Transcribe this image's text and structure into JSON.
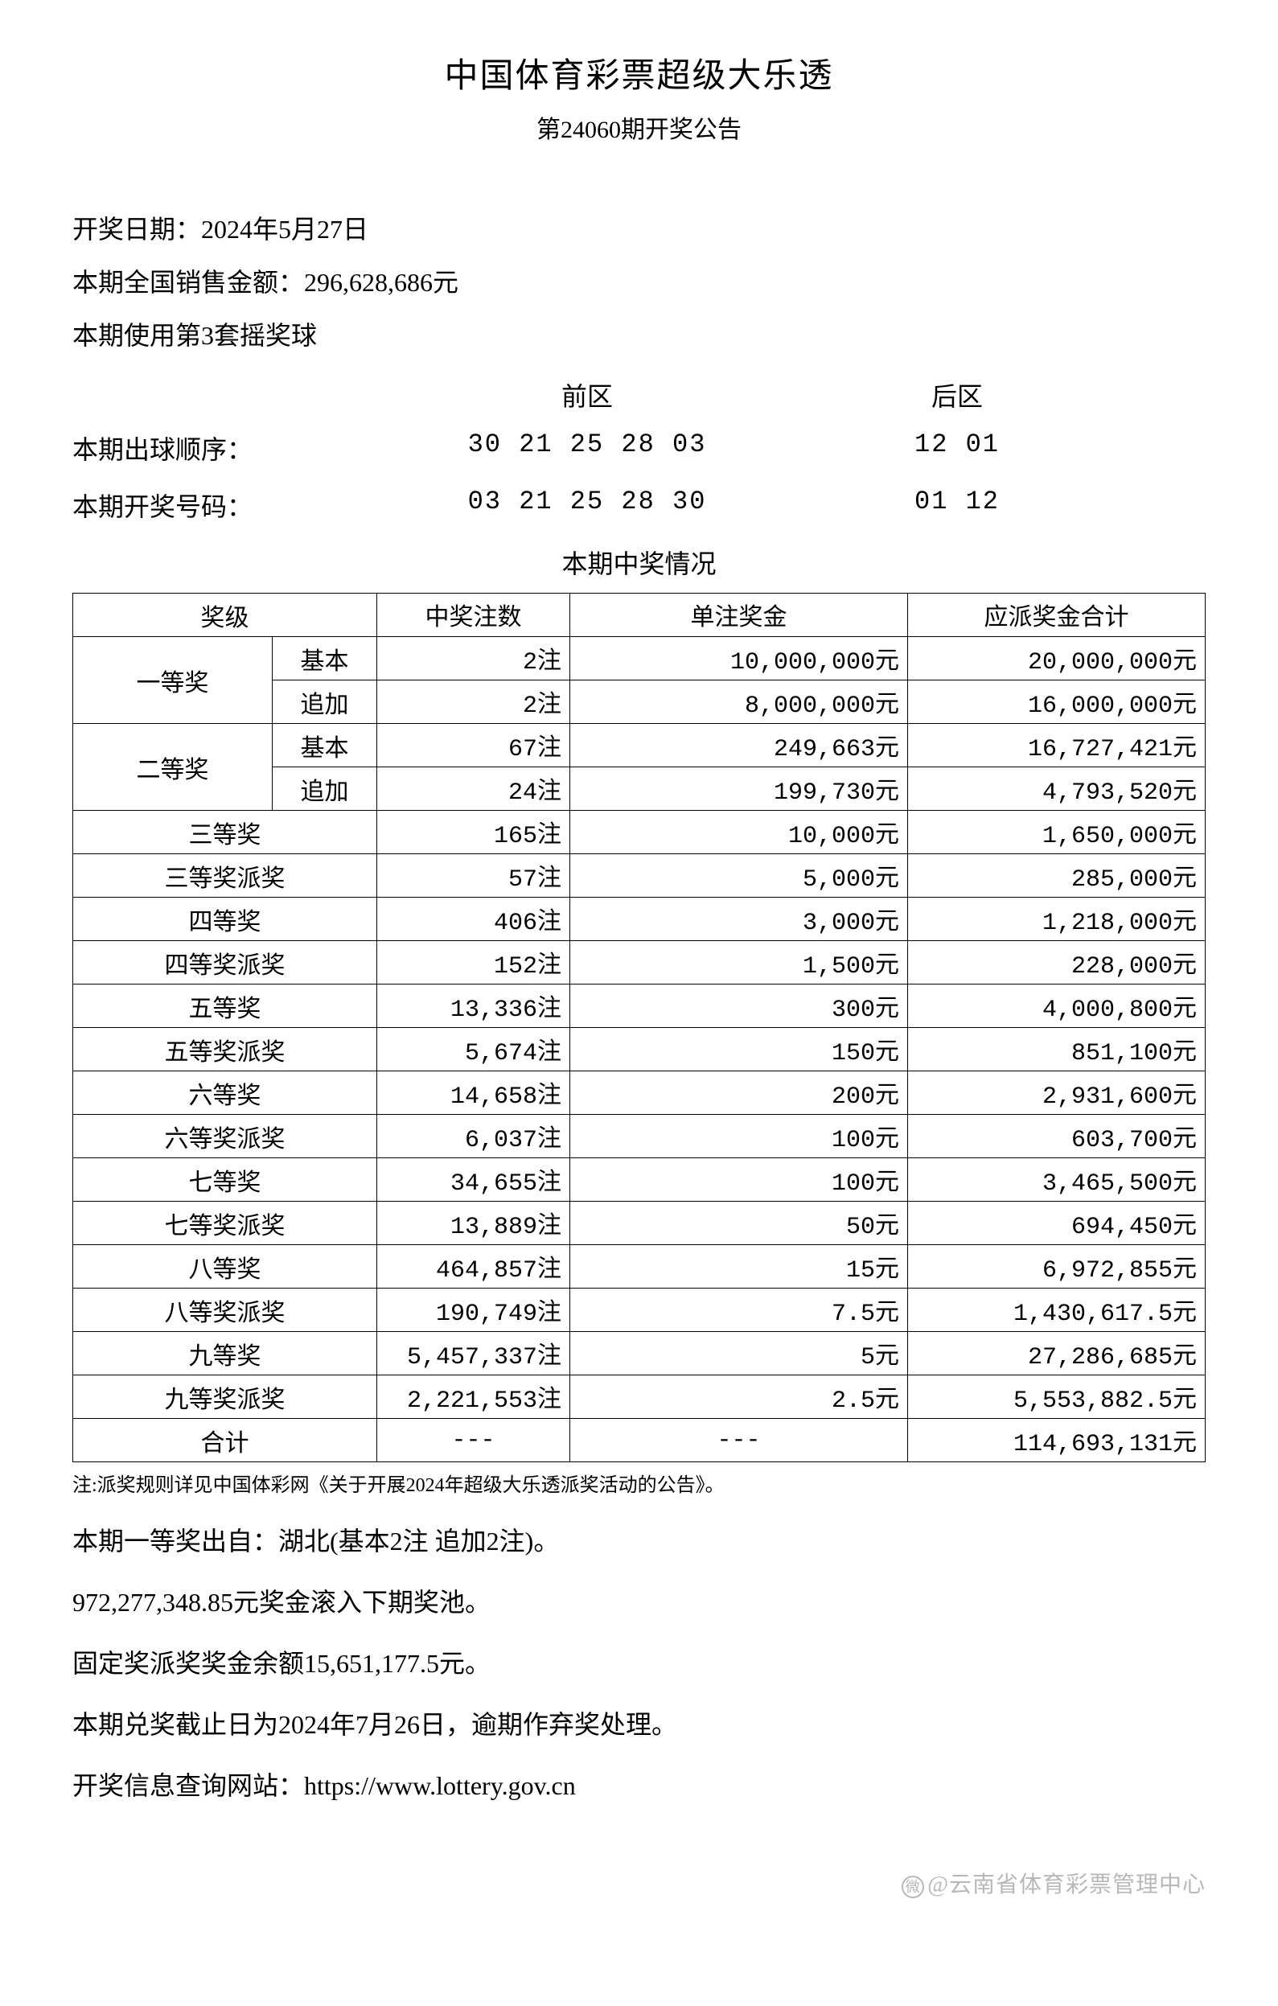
{
  "header": {
    "title": "中国体育彩票超级大乐透",
    "subtitle": "第24060期开奖公告"
  },
  "info": {
    "draw_date": "开奖日期：2024年5月27日",
    "national_sales": "本期全国销售金额：296,628,686元",
    "ball_set": "本期使用第3套摇奖球"
  },
  "numbers": {
    "front_label": "前区",
    "back_label": "后区",
    "draw_order_label": "本期出球顺序：",
    "draw_order_front": "30 21 25 28 03",
    "draw_order_back": "12 01",
    "winning_label": "本期开奖号码：",
    "winning_front": "03 21 25 28 30",
    "winning_back": "01 12"
  },
  "prize_heading": "本期中奖情况",
  "table": {
    "headers": {
      "level": "奖级",
      "count": "中奖注数",
      "amount": "单注奖金",
      "total": "应派奖金合计"
    },
    "first": {
      "label": "一等奖",
      "basic_label": "基本",
      "basic": {
        "count": "2注",
        "amount": "10,000,000元",
        "total": "20,000,000元"
      },
      "extra_label": "追加",
      "extra": {
        "count": "2注",
        "amount": "8,000,000元",
        "total": "16,000,000元"
      }
    },
    "second": {
      "label": "二等奖",
      "basic_label": "基本",
      "basic": {
        "count": "67注",
        "amount": "249,663元",
        "total": "16,727,421元"
      },
      "extra_label": "追加",
      "extra": {
        "count": "24注",
        "amount": "199,730元",
        "total": "4,793,520元"
      }
    },
    "rows": [
      {
        "label": "三等奖",
        "count": "165注",
        "amount": "10,000元",
        "total": "1,650,000元"
      },
      {
        "label": "三等奖派奖",
        "count": "57注",
        "amount": "5,000元",
        "total": "285,000元"
      },
      {
        "label": "四等奖",
        "count": "406注",
        "amount": "3,000元",
        "total": "1,218,000元"
      },
      {
        "label": "四等奖派奖",
        "count": "152注",
        "amount": "1,500元",
        "total": "228,000元"
      },
      {
        "label": "五等奖",
        "count": "13,336注",
        "amount": "300元",
        "total": "4,000,800元"
      },
      {
        "label": "五等奖派奖",
        "count": "5,674注",
        "amount": "150元",
        "total": "851,100元"
      },
      {
        "label": "六等奖",
        "count": "14,658注",
        "amount": "200元",
        "total": "2,931,600元"
      },
      {
        "label": "六等奖派奖",
        "count": "6,037注",
        "amount": "100元",
        "total": "603,700元"
      },
      {
        "label": "七等奖",
        "count": "34,655注",
        "amount": "100元",
        "total": "3,465,500元"
      },
      {
        "label": "七等奖派奖",
        "count": "13,889注",
        "amount": "50元",
        "total": "694,450元"
      },
      {
        "label": "八等奖",
        "count": "464,857注",
        "amount": "15元",
        "total": "6,972,855元"
      },
      {
        "label": "八等奖派奖",
        "count": "190,749注",
        "amount": "7.5元",
        "total": "1,430,617.5元"
      },
      {
        "label": "九等奖",
        "count": "5,457,337注",
        "amount": "5元",
        "total": "27,286,685元"
      },
      {
        "label": "九等奖派奖",
        "count": "2,221,553注",
        "amount": "2.5元",
        "total": "5,553,882.5元"
      }
    ],
    "total_row": {
      "label": "合计",
      "count": "---",
      "amount": "---",
      "total": "114,693,131元"
    }
  },
  "footnote": "注:派奖规则详见中国体彩网《关于开展2024年超级大乐透派奖活动的公告》。",
  "post": {
    "p1": "本期一等奖出自：湖北(基本2注 追加2注)。",
    "p2": "972,277,348.85元奖金滚入下期奖池。",
    "p3": "固定奖派奖奖金余额15,651,177.5元。",
    "p4": "本期兑奖截止日为2024年7月26日，逾期作弃奖处理。",
    "p5": "开奖信息查询网站：https://www.lottery.gov.cn"
  },
  "watermark": "@云南省体育彩票管理中心"
}
